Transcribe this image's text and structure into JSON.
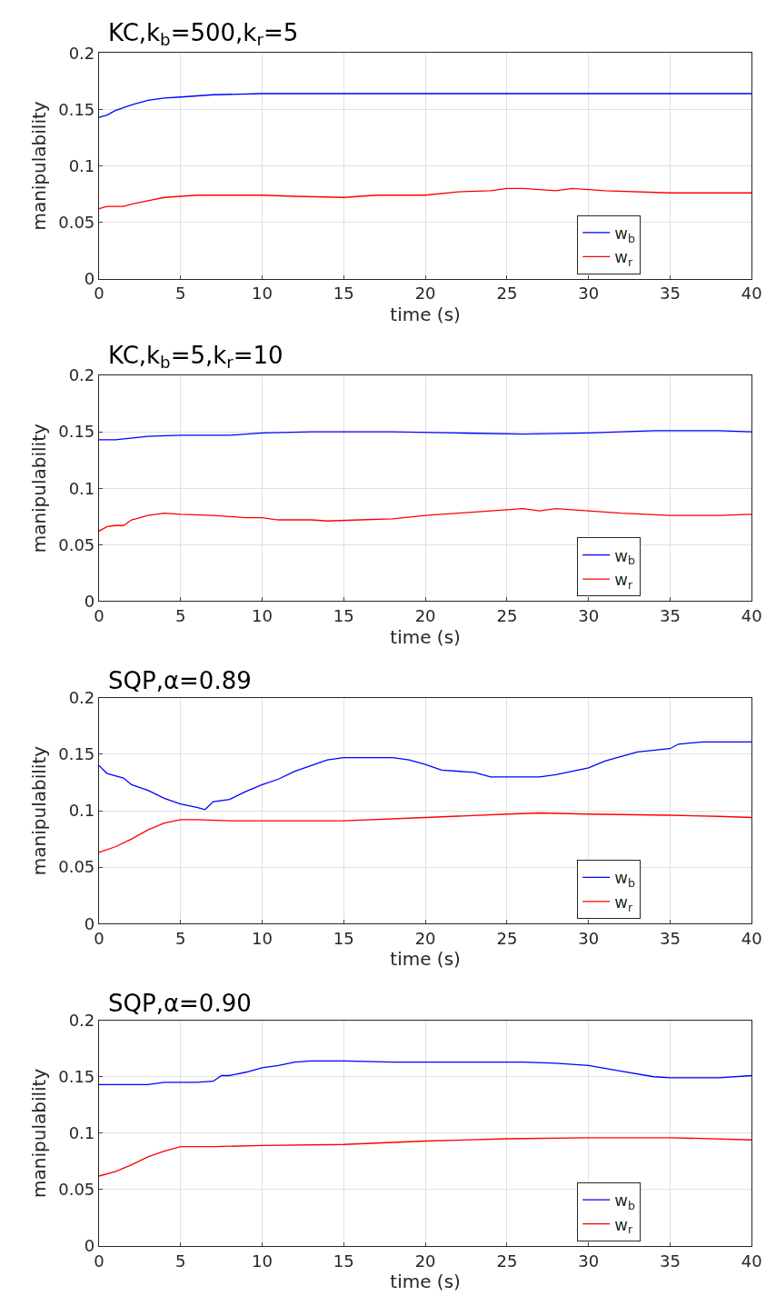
{
  "chart_data": [
    {
      "type": "line",
      "title": "KC,k$_{b}$=500,k$_{r}$=5",
      "xlabel": "time (s)",
      "ylabel": "manipulability",
      "xlim": [
        0,
        40
      ],
      "xticks": [
        0,
        5,
        10,
        15,
        20,
        25,
        30,
        35,
        40
      ],
      "ylim": [
        0,
        0.2
      ],
      "yticks": [
        0,
        0.05,
        0.1,
        0.15,
        0.2
      ],
      "grid": true,
      "legend": "bottom right",
      "line_style": "solid",
      "series": [
        {
          "name": "w$_{b}$",
          "color": "#0000ff",
          "x": [
            0,
            0.5,
            1,
            2,
            3,
            4,
            5,
            7,
            10,
            15,
            40
          ],
          "values": [
            0.143,
            0.145,
            0.149,
            0.154,
            0.158,
            0.16,
            0.161,
            0.163,
            0.164,
            0.164,
            0.164
          ]
        },
        {
          "name": "w$_{r}$",
          "color": "#ff0000",
          "x": [
            0,
            0.5,
            1.5,
            2,
            3,
            4,
            6,
            8,
            10,
            12,
            15,
            17,
            20,
            22,
            24,
            25,
            26,
            28,
            29,
            31,
            35,
            40
          ],
          "values": [
            0.062,
            0.064,
            0.064,
            0.066,
            0.069,
            0.072,
            0.074,
            0.074,
            0.074,
            0.073,
            0.072,
            0.074,
            0.074,
            0.077,
            0.078,
            0.08,
            0.08,
            0.078,
            0.08,
            0.078,
            0.076,
            0.076
          ]
        }
      ]
    },
    {
      "type": "line",
      "title": "KC,k$_{b}$=5,k$_{r}$=10",
      "xlabel": "time (s)",
      "ylabel": "manipulability",
      "xlim": [
        0,
        40
      ],
      "xticks": [
        0,
        5,
        10,
        15,
        20,
        25,
        30,
        35,
        40
      ],
      "ylim": [
        0,
        0.2
      ],
      "yticks": [
        0,
        0.05,
        0.1,
        0.15,
        0.2
      ],
      "grid": true,
      "legend": "bottom right",
      "line_style": "solid",
      "series": [
        {
          "name": "w$_{b}$",
          "color": "#0000ff",
          "x": [
            0,
            1,
            3,
            5,
            8,
            10,
            13,
            18,
            22,
            26,
            30,
            34,
            38,
            40
          ],
          "values": [
            0.143,
            0.143,
            0.146,
            0.147,
            0.147,
            0.149,
            0.15,
            0.15,
            0.149,
            0.148,
            0.149,
            0.151,
            0.151,
            0.15
          ]
        },
        {
          "name": "w$_{r}$",
          "color": "#ff0000",
          "x": [
            0,
            0.5,
            1,
            1.5,
            2,
            3,
            4,
            5,
            7,
            8,
            9,
            10,
            11,
            13,
            14,
            16,
            18,
            20,
            22,
            24,
            26,
            27,
            28,
            30,
            32,
            35,
            38,
            40
          ],
          "values": [
            0.062,
            0.066,
            0.067,
            0.067,
            0.072,
            0.076,
            0.078,
            0.077,
            0.076,
            0.075,
            0.074,
            0.074,
            0.072,
            0.072,
            0.071,
            0.072,
            0.073,
            0.076,
            0.078,
            0.08,
            0.082,
            0.08,
            0.082,
            0.08,
            0.078,
            0.076,
            0.076,
            0.077
          ]
        }
      ]
    },
    {
      "type": "line",
      "title": "SQP,α=0.89",
      "xlabel": "time (s)",
      "ylabel": "manipulability",
      "xlim": [
        0,
        40
      ],
      "xticks": [
        0,
        5,
        10,
        15,
        20,
        25,
        30,
        35,
        40
      ],
      "ylim": [
        0,
        0.2
      ],
      "yticks": [
        0,
        0.05,
        0.1,
        0.15,
        0.2
      ],
      "grid": true,
      "legend": "bottom right",
      "line_style": "solid",
      "series": [
        {
          "name": "w$_{b}$",
          "color": "#0000ff",
          "x": [
            0,
            0.5,
            1.5,
            2,
            3,
            4,
            5,
            6,
            6.5,
            7,
            8,
            9,
            10,
            11,
            12,
            13,
            14,
            15,
            17,
            18,
            19,
            20,
            21,
            23,
            24,
            27,
            28,
            30,
            31,
            33,
            35,
            35.5,
            37,
            40
          ],
          "values": [
            0.14,
            0.133,
            0.129,
            0.123,
            0.118,
            0.111,
            0.106,
            0.103,
            0.101,
            0.108,
            0.11,
            0.117,
            0.123,
            0.128,
            0.135,
            0.14,
            0.145,
            0.147,
            0.147,
            0.147,
            0.145,
            0.141,
            0.136,
            0.134,
            0.13,
            0.13,
            0.132,
            0.138,
            0.144,
            0.152,
            0.155,
            0.159,
            0.161,
            0.161
          ]
        },
        {
          "name": "w$_{r}$",
          "color": "#ff0000",
          "x": [
            0,
            1,
            2,
            3,
            4,
            5,
            6,
            8,
            15,
            20,
            25,
            27,
            30,
            35,
            38,
            40
          ],
          "values": [
            0.063,
            0.068,
            0.075,
            0.083,
            0.089,
            0.092,
            0.092,
            0.091,
            0.091,
            0.094,
            0.097,
            0.098,
            0.097,
            0.096,
            0.095,
            0.094
          ]
        }
      ]
    },
    {
      "type": "line",
      "title": "SQP,α=0.90",
      "xlabel": "time (s)",
      "ylabel": "manipulability",
      "xlim": [
        0,
        40
      ],
      "xticks": [
        0,
        5,
        10,
        15,
        20,
        25,
        30,
        35,
        40
      ],
      "ylim": [
        0,
        0.2
      ],
      "yticks": [
        0,
        0.05,
        0.1,
        0.15,
        0.2
      ],
      "grid": true,
      "legend": "bottom right",
      "line_style": "solid",
      "series": [
        {
          "name": "w$_{b}$",
          "color": "#0000ff",
          "x": [
            0,
            3,
            4,
            6,
            7,
            7.5,
            8,
            9,
            10,
            11,
            12,
            13,
            15,
            18,
            26,
            28,
            30,
            32,
            34,
            35,
            38,
            40
          ],
          "values": [
            0.143,
            0.143,
            0.145,
            0.145,
            0.146,
            0.151,
            0.151,
            0.154,
            0.158,
            0.16,
            0.163,
            0.164,
            0.164,
            0.163,
            0.163,
            0.162,
            0.16,
            0.155,
            0.15,
            0.149,
            0.149,
            0.151
          ]
        },
        {
          "name": "w$_{r}$",
          "color": "#ff0000",
          "x": [
            0,
            1,
            2,
            3,
            4,
            5,
            7,
            10,
            15,
            20,
            25,
            30,
            35,
            40
          ],
          "values": [
            0.062,
            0.066,
            0.072,
            0.079,
            0.084,
            0.088,
            0.088,
            0.089,
            0.09,
            0.093,
            0.095,
            0.096,
            0.096,
            0.094
          ]
        }
      ]
    }
  ]
}
